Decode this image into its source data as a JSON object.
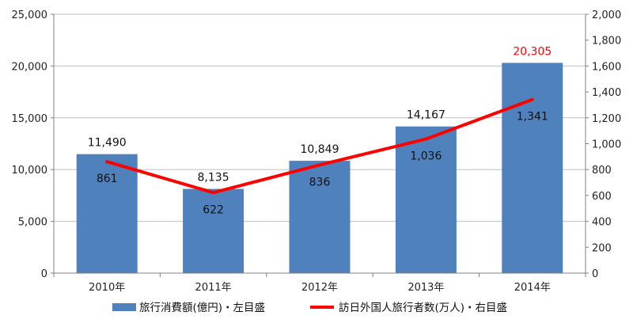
{
  "chart_data": {
    "type": "bar",
    "categories": [
      "2010年",
      "2011年",
      "2012年",
      "2013年",
      "2014年"
    ],
    "series": [
      {
        "name": "旅行消費額(億円)・左目盛",
        "type": "bar",
        "axis": "left",
        "color": "#4F81BD",
        "values": [
          11490,
          8135,
          10849,
          14167,
          20305
        ],
        "labels": [
          "11,490",
          "8,135",
          "10,849",
          "14,167",
          "20,305"
        ],
        "label_colors": [
          "#111111",
          "#111111",
          "#111111",
          "#111111",
          "#FF0000"
        ]
      },
      {
        "name": "訪日外国人旅行者数(万人)・右目盛",
        "type": "line",
        "axis": "right",
        "color": "#FF0000",
        "values": [
          861,
          622,
          836,
          1036,
          1341
        ],
        "labels": [
          "861",
          "622",
          "836",
          "1,036",
          "1,341"
        ]
      }
    ],
    "y_left": {
      "ylim": [
        0,
        25000
      ],
      "ticks": [
        0,
        5000,
        10000,
        15000,
        20000,
        25000
      ],
      "tick_labels": [
        "0",
        "5,000",
        "10,000",
        "15,000",
        "20,000",
        "25,000"
      ]
    },
    "y_right": {
      "ylim": [
        0,
        2000
      ],
      "ticks": [
        0,
        200,
        400,
        600,
        800,
        1000,
        1200,
        1400,
        1600,
        1800,
        2000
      ],
      "tick_labels": [
        "0",
        "200",
        "400",
        "600",
        "800",
        "1,000",
        "1,200",
        "1,400",
        "1,600",
        "1,800",
        "2,000"
      ]
    },
    "grid": true,
    "legend": "bottom"
  }
}
